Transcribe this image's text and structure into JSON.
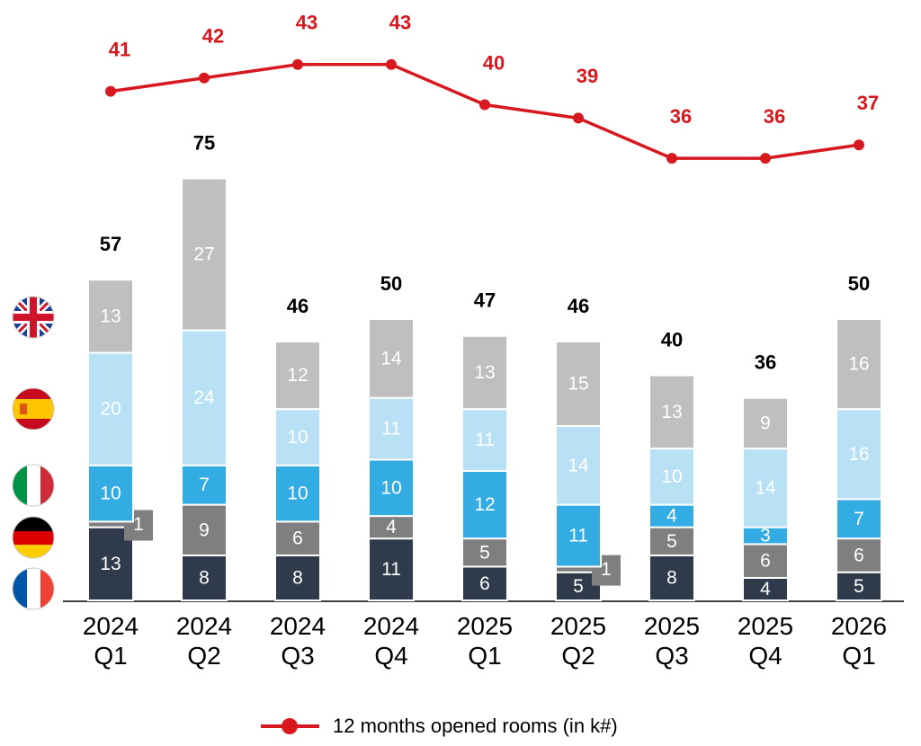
{
  "chart_data": {
    "type": "stacked-bar-line",
    "categories": [
      "2024 Q1",
      "2024 Q2",
      "2024 Q3",
      "2024 Q4",
      "2025 Q1",
      "2025 Q2",
      "2025 Q3",
      "2025 Q4",
      "2026 Q1"
    ],
    "series": [
      {
        "color": "#2f3b4b",
        "values": [
          13,
          8,
          8,
          11,
          6,
          5,
          8,
          4,
          5
        ]
      },
      {
        "color": "#7f7f7f",
        "values": [
          1,
          9,
          6,
          4,
          5,
          1,
          5,
          6,
          6
        ]
      },
      {
        "color": "#33ace3",
        "values": [
          10,
          7,
          10,
          10,
          12,
          11,
          4,
          3,
          7
        ]
      },
      {
        "color": "#b8e1f6",
        "values": [
          20,
          24,
          10,
          11,
          11,
          14,
          10,
          14,
          16
        ]
      },
      {
        "color": "#bfbfbf",
        "values": [
          13,
          27,
          12,
          14,
          13,
          15,
          13,
          9,
          16
        ]
      }
    ],
    "totals": [
      57,
      75,
      46,
      50,
      47,
      46,
      40,
      36,
      50
    ],
    "ylim": [
      0,
      100
    ],
    "line_series": {
      "name": "12 months opened rooms (in k#)",
      "color": "#d7191f",
      "axis": "y2",
      "values": [
        41,
        42,
        43,
        43,
        40,
        39,
        36,
        36,
        37
      ]
    },
    "y2lim": [
      3,
      45
    ],
    "legend": "bottom"
  }
}
